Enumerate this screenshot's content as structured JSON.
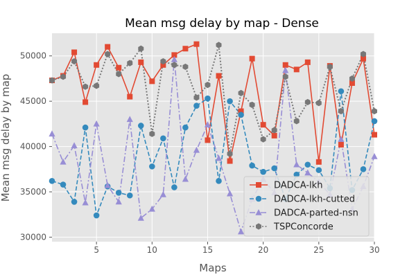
{
  "chart_data": {
    "type": "line",
    "title": "Mean msg delay by map - Dense",
    "xlabel": "Maps",
    "ylabel": "Mean msg delay by map",
    "xlim": [
      1,
      30
    ],
    "ylim": [
      29500,
      52500
    ],
    "xticks": [
      5,
      10,
      15,
      20,
      25,
      30
    ],
    "yticks": [
      30000,
      35000,
      40000,
      45000,
      50000
    ],
    "grid": true,
    "legend_position": "bottom-right",
    "x": [
      1,
      2,
      3,
      4,
      5,
      6,
      7,
      8,
      9,
      10,
      11,
      12,
      13,
      14,
      15,
      16,
      17,
      18,
      19,
      20,
      21,
      22,
      23,
      24,
      25,
      26,
      27,
      28,
      29,
      30
    ],
    "series": [
      {
        "name": "DADCA-lkh",
        "color": "#E24A33",
        "marker": "square",
        "linestyle": "solid",
        "values": [
          47300,
          47800,
          50400,
          44900,
          49000,
          51000,
          48700,
          45500,
          49300,
          47200,
          49000,
          50100,
          50800,
          51300,
          40700,
          47800,
          38400,
          43900,
          49700,
          42400,
          41200,
          49000,
          48500,
          49300,
          38300,
          48900,
          40200,
          47000,
          49700,
          41300
        ]
      },
      {
        "name": "DADCA-lkh-cutted",
        "color": "#348ABD",
        "marker": "circle",
        "linestyle": "dashed",
        "values": [
          36200,
          35800,
          33900,
          42100,
          32400,
          35600,
          34900,
          34600,
          42300,
          37800,
          40900,
          35500,
          42100,
          44500,
          45300,
          36200,
          45000,
          43500,
          37900,
          37200,
          37600,
          34200,
          36900,
          38000,
          37400,
          35400,
          46100,
          35200,
          37500,
          42800
        ]
      },
      {
        "name": "DADCA-parted-nsn",
        "color": "#988ED5",
        "marker": "triangle",
        "linestyle": "dashdot",
        "values": [
          41400,
          38300,
          40100,
          33800,
          42500,
          35700,
          33900,
          43000,
          32100,
          33100,
          34700,
          49600,
          36400,
          39600,
          42400,
          38700,
          34800,
          30600,
          34200,
          36400,
          34900,
          48400,
          38000,
          37100,
          36100,
          34700,
          40800,
          33100,
          35600,
          38900
        ]
      },
      {
        "name": "TSPConcorde",
        "color": "#777777",
        "marker": "hexagon",
        "linestyle": "dotted",
        "values": [
          47300,
          47700,
          49400,
          46600,
          46700,
          50200,
          48000,
          49200,
          50800,
          41400,
          49400,
          49000,
          48800,
          45400,
          46800,
          51200,
          39200,
          45900,
          44600,
          40800,
          41800,
          47700,
          42800,
          44900,
          44800,
          48800,
          43900,
          47500,
          50200,
          43900
        ]
      }
    ]
  }
}
